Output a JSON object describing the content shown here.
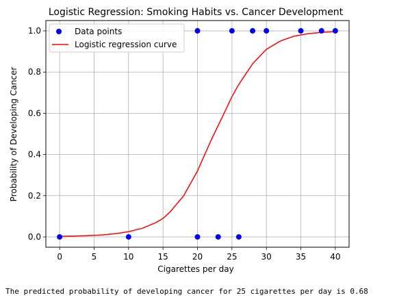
{
  "output_text": "The predicted probability of developing cancer for 25 cigarettes per day is 0.68",
  "chart_data": {
    "type": "scatter",
    "title": "Logistic Regression: Smoking Habits vs. Cancer Development",
    "xlabel": "Cigarettes per day",
    "ylabel": "Probability of Developing Cancer",
    "xlim": [
      -2,
      42
    ],
    "ylim": [
      -0.05,
      1.05
    ],
    "xticks": [
      0,
      5,
      10,
      15,
      20,
      25,
      30,
      35,
      40
    ],
    "yticks": [
      0.0,
      0.2,
      0.4,
      0.6,
      0.8,
      1.0
    ],
    "grid": true,
    "legend_position": "top-left",
    "series": [
      {
        "name": "Data points",
        "kind": "scatter",
        "color": "#0000ff",
        "points": [
          [
            0,
            0
          ],
          [
            10,
            0
          ],
          [
            20,
            0
          ],
          [
            23,
            0
          ],
          [
            26,
            0
          ],
          [
            20,
            1
          ],
          [
            25,
            1
          ],
          [
            28,
            1
          ],
          [
            30,
            1
          ],
          [
            35,
            1
          ],
          [
            38,
            1
          ],
          [
            40,
            1
          ]
        ]
      },
      {
        "name": "Logistic regression curve",
        "kind": "line",
        "color": "#ff0000",
        "points": [
          [
            0,
            0.003
          ],
          [
            2,
            0.004
          ],
          [
            4,
            0.006
          ],
          [
            6,
            0.009
          ],
          [
            8,
            0.015
          ],
          [
            10,
            0.025
          ],
          [
            12,
            0.042
          ],
          [
            14,
            0.07
          ],
          [
            15,
            0.09
          ],
          [
            16,
            0.12
          ],
          [
            18,
            0.2
          ],
          [
            20,
            0.32
          ],
          [
            22,
            0.47
          ],
          [
            24,
            0.61
          ],
          [
            25,
            0.68
          ],
          [
            26,
            0.74
          ],
          [
            28,
            0.84
          ],
          [
            30,
            0.91
          ],
          [
            32,
            0.95
          ],
          [
            34,
            0.974
          ],
          [
            36,
            0.986
          ],
          [
            38,
            0.993
          ],
          [
            40,
            0.996
          ]
        ]
      }
    ]
  }
}
